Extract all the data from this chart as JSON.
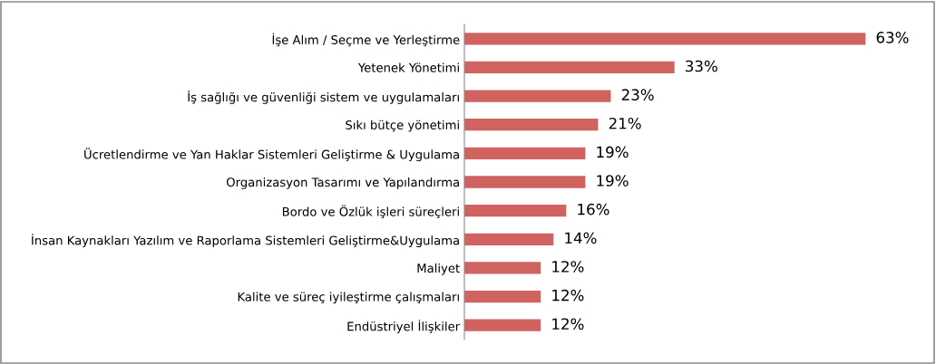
{
  "chart_data": {
    "type": "bar",
    "orientation": "horizontal",
    "categories": [
      "İşe Alım / Seçme ve Yerleştirme",
      "Yetenek Yönetimi",
      "İş sağlığı ve güvenliği sistem ve uygulamaları",
      "Sıkı bütçe yönetimi",
      "Ücretlendirme ve Yan Haklar Sistemleri Geliştirme & Uygulama",
      "Organizasyon Tasarımı ve Yapılandırma",
      "Bordo ve Özlük işleri süreçleri",
      "İnsan Kaynakları Yazılım ve Raporlama Sistemleri Geliştirme&Uygulama",
      "Maliyet",
      "Kalite ve süreç iyileştirme çalışmaları",
      "Endüstriyel İlişkiler"
    ],
    "values": [
      63,
      33,
      23,
      21,
      19,
      19,
      16,
      14,
      12,
      12,
      12
    ],
    "value_labels": [
      "63%",
      "33%",
      "23%",
      "21%",
      "19%",
      "19%",
      "16%",
      "14%",
      "12%",
      "12%",
      "12%"
    ],
    "color": "#d0635f",
    "tick_labels": "y",
    "grid": false,
    "legend": false
  }
}
